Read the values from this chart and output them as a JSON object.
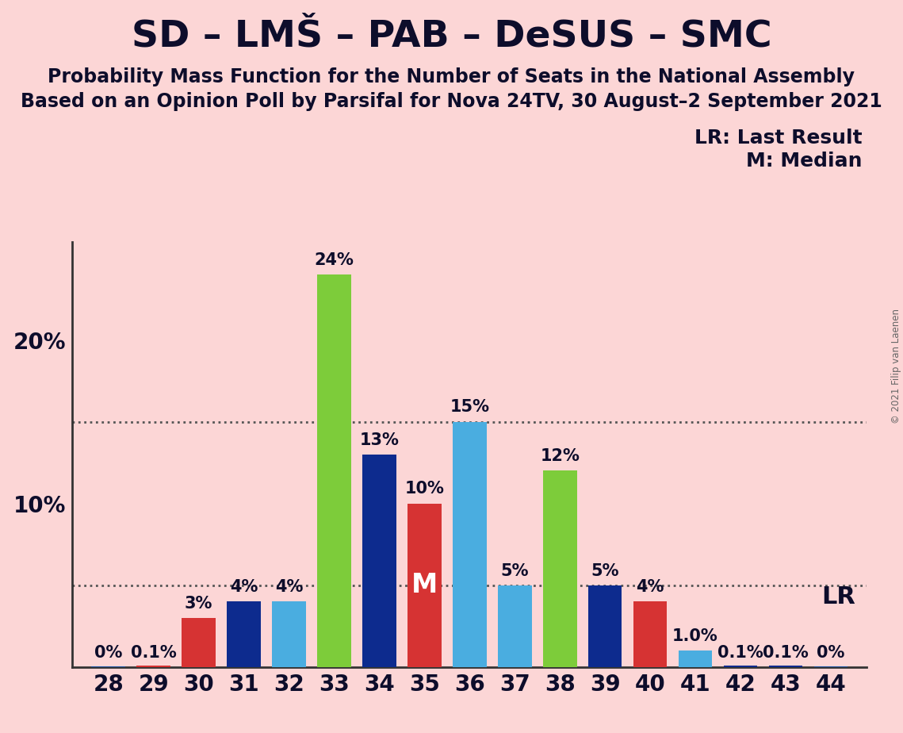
{
  "title": "SD – LMŠ – PAB – DeSUS – SMC",
  "subtitle1": "Probability Mass Function for the Number of Seats in the National Assembly",
  "subtitle2": "Based on an Opinion Poll by Parsifal for Nova 24TV, 30 August–2 September 2021",
  "copyright": "© 2021 Filip van Laenen",
  "legend_lr": "LR: Last Result",
  "legend_m": "M: Median",
  "background_color": "#fcd6d6",
  "seats": [
    28,
    29,
    30,
    31,
    32,
    33,
    34,
    35,
    36,
    37,
    38,
    39,
    40,
    41,
    42,
    43,
    44
  ],
  "values": [
    0.05,
    0.1,
    3.0,
    4.0,
    4.0,
    24.0,
    13.0,
    10.0,
    15.0,
    5.0,
    12.0,
    5.0,
    4.0,
    1.0,
    0.1,
    0.1,
    0.05
  ],
  "colors": [
    "#1a52a0",
    "#d63333",
    "#d63333",
    "#0d2b8e",
    "#4aade0",
    "#7dcc3a",
    "#0d2b8e",
    "#d63333",
    "#4aade0",
    "#4aade0",
    "#7dcc3a",
    "#0d2b8e",
    "#d63333",
    "#4aade0",
    "#0d2b8e",
    "#0d2b8e",
    "#1a52a0"
  ],
  "labels": [
    "0%",
    "0.1%",
    "3%",
    "4%",
    "4%",
    "24%",
    "13%",
    "10%",
    "15%",
    "5%",
    "12%",
    "5%",
    "4%",
    "1.0%",
    "0.1%",
    "0.1%",
    "0%"
  ],
  "median_seat": 35,
  "lr_seat": 40,
  "ylim": [
    0,
    26
  ],
  "dotted_lines": [
    5.0,
    15.0
  ],
  "title_fontsize": 34,
  "subtitle_fontsize": 17,
  "label_fontsize": 15,
  "axis_fontsize": 20,
  "legend_fontsize": 18,
  "bar_width": 0.75
}
